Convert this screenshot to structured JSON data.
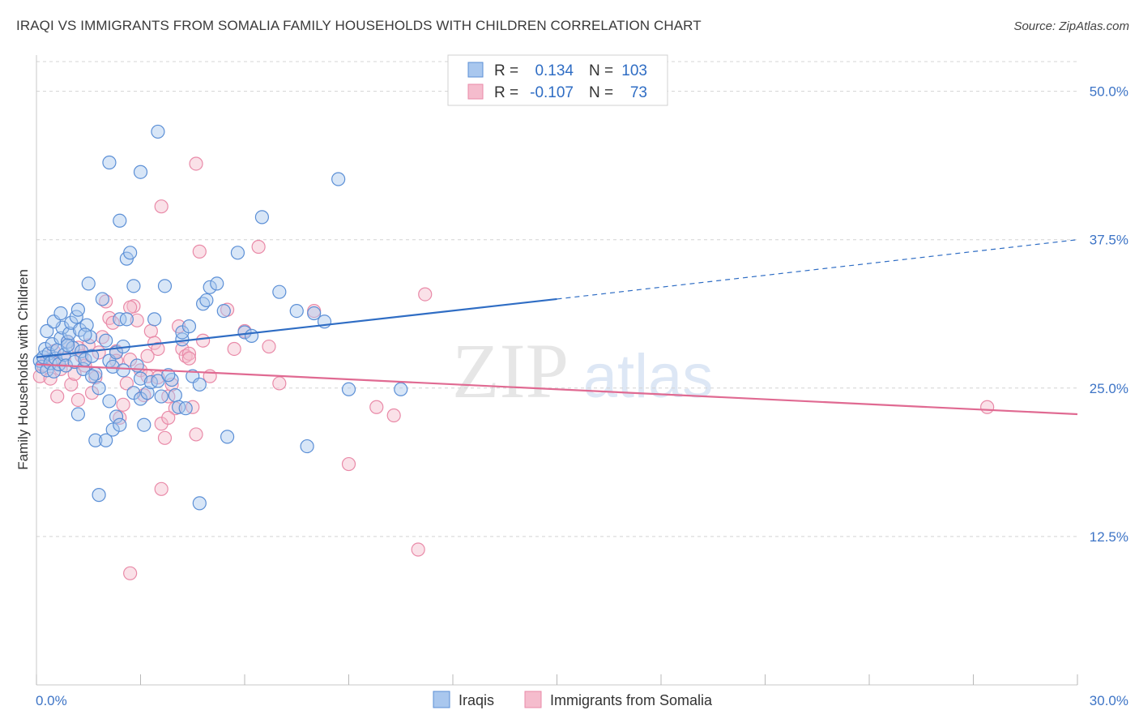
{
  "chart_data": {
    "type": "scatter",
    "title": "IRAQI VS IMMIGRANTS FROM SOMALIA FAMILY HOUSEHOLDS WITH CHILDREN CORRELATION CHART",
    "source": "Source: ZipAtlas.com",
    "watermark": {
      "zip": "ZIP",
      "atlas": "atlas"
    },
    "ylabel": "Family Households with Children",
    "xlabel": "",
    "xlim": [
      0,
      30
    ],
    "ylim": [
      0,
      52.5
    ],
    "x_tick_labels": [
      {
        "value": 0,
        "label": "0.0%"
      },
      {
        "value": 30,
        "label": "30.0%"
      }
    ],
    "x_minor_ticks": [
      0,
      3,
      6,
      9,
      12,
      15,
      18,
      21,
      24,
      27,
      30
    ],
    "y_ticks": [
      {
        "value": 12.5,
        "label": "12.5%"
      },
      {
        "value": 25,
        "label": "25.0%"
      },
      {
        "value": 37.5,
        "label": "37.5%"
      },
      {
        "value": 50,
        "label": "50.0%"
      }
    ],
    "grid": true,
    "legend_position": "top-center",
    "colors": {
      "iraqi_fill": "#a9c7ee",
      "iraqi_stroke": "#5b8fd6",
      "iraqi_line": "#2f6dc4",
      "somalia_fill": "#f5bccd",
      "somalia_stroke": "#e98aa8",
      "somalia_line": "#e06a92",
      "tick_text": "#3d74c6",
      "grid": "#d4d4d4"
    },
    "series": [
      {
        "name": "Iraqis",
        "r_label": "R =",
        "r_value": "0.134",
        "n_label": "N =",
        "n_value": "103",
        "trend": {
          "x0": 0,
          "y0": 27.6,
          "x1": 15,
          "y1": 32.5,
          "dash_to_x": 30,
          "dash_to_y": 37.5
        },
        "points": [
          [
            0.1,
            27.3
          ],
          [
            0.15,
            26.8
          ],
          [
            0.2,
            27.6
          ],
          [
            0.25,
            28.3
          ],
          [
            0.3,
            26.5
          ],
          [
            0.35,
            27.9
          ],
          [
            0.4,
            27.1
          ],
          [
            0.45,
            28.7
          ],
          [
            0.5,
            26.4
          ],
          [
            0.55,
            27.5
          ],
          [
            0.6,
            28.2
          ],
          [
            0.65,
            27.0
          ],
          [
            0.7,
            29.2
          ],
          [
            0.75,
            30.1
          ],
          [
            0.8,
            27.8
          ],
          [
            0.85,
            26.9
          ],
          [
            0.9,
            28.9
          ],
          [
            0.95,
            29.6
          ],
          [
            1.0,
            30.5
          ],
          [
            1.05,
            28.4
          ],
          [
            1.1,
            27.2
          ],
          [
            1.15,
            31.0
          ],
          [
            1.2,
            31.6
          ],
          [
            1.25,
            29.9
          ],
          [
            1.3,
            28.1
          ],
          [
            1.35,
            26.6
          ],
          [
            1.4,
            27.4
          ],
          [
            1.45,
            30.3
          ],
          [
            1.5,
            33.8
          ],
          [
            1.55,
            29.3
          ],
          [
            1.6,
            27.7
          ],
          [
            1.7,
            26.2
          ],
          [
            1.8,
            25.0
          ],
          [
            1.9,
            32.5
          ],
          [
            2.0,
            29.0
          ],
          [
            2.1,
            27.3
          ],
          [
            2.2,
            26.8
          ],
          [
            2.3,
            28.0
          ],
          [
            2.4,
            30.8
          ],
          [
            2.5,
            26.5
          ],
          [
            0.3,
            29.8
          ],
          [
            0.5,
            30.6
          ],
          [
            0.7,
            31.3
          ],
          [
            0.9,
            28.6
          ],
          [
            1.2,
            22.8
          ],
          [
            1.4,
            29.5
          ],
          [
            1.6,
            26.0
          ],
          [
            1.7,
            20.6
          ],
          [
            1.8,
            16.0
          ],
          [
            2.0,
            20.6
          ],
          [
            2.1,
            23.9
          ],
          [
            2.2,
            21.5
          ],
          [
            2.3,
            22.6
          ],
          [
            2.4,
            21.9
          ],
          [
            2.1,
            44.0
          ],
          [
            2.4,
            39.1
          ],
          [
            2.6,
            35.9
          ],
          [
            2.7,
            36.4
          ],
          [
            2.8,
            33.6
          ],
          [
            2.6,
            30.8
          ],
          [
            2.8,
            24.6
          ],
          [
            3.0,
            25.8
          ],
          [
            3.0,
            24.1
          ],
          [
            3.1,
            21.9
          ],
          [
            3.2,
            24.6
          ],
          [
            3.3,
            25.5
          ],
          [
            3.4,
            30.8
          ],
          [
            3.5,
            25.6
          ],
          [
            3.6,
            24.3
          ],
          [
            3.7,
            33.6
          ],
          [
            3.9,
            25.7
          ],
          [
            4.0,
            24.4
          ],
          [
            4.1,
            23.4
          ],
          [
            4.2,
            29.1
          ],
          [
            4.2,
            29.7
          ],
          [
            4.3,
            23.3
          ],
          [
            4.5,
            26.0
          ],
          [
            4.7,
            25.3
          ],
          [
            4.8,
            32.1
          ],
          [
            4.9,
            32.4
          ],
          [
            5.0,
            33.5
          ],
          [
            5.2,
            33.8
          ],
          [
            5.4,
            31.5
          ],
          [
            5.5,
            20.9
          ],
          [
            5.8,
            36.4
          ],
          [
            6.0,
            29.7
          ],
          [
            6.2,
            29.4
          ],
          [
            6.5,
            39.4
          ],
          [
            7.0,
            33.1
          ],
          [
            7.5,
            31.5
          ],
          [
            8.0,
            31.3
          ],
          [
            8.3,
            30.6
          ],
          [
            8.7,
            42.6
          ],
          [
            9.0,
            24.9
          ],
          [
            10.5,
            24.9
          ],
          [
            7.8,
            20.1
          ],
          [
            4.7,
            15.3
          ],
          [
            3.5,
            46.6
          ],
          [
            3.0,
            43.2
          ],
          [
            2.5,
            28.5
          ],
          [
            3.8,
            26.1
          ],
          [
            4.4,
            30.2
          ],
          [
            2.9,
            26.9
          ]
        ]
      },
      {
        "name": "Immigrants from Somalia",
        "r_label": "R =",
        "r_value": "-0.107",
        "n_label": "N =",
        "n_value": "73",
        "trend": {
          "x0": 0,
          "y0": 27.0,
          "x1": 30,
          "y1": 22.8
        },
        "points": [
          [
            0.1,
            26.0
          ],
          [
            0.2,
            26.9
          ],
          [
            0.3,
            27.3
          ],
          [
            0.4,
            25.8
          ],
          [
            0.5,
            28.1
          ],
          [
            0.6,
            24.3
          ],
          [
            0.7,
            26.6
          ],
          [
            0.8,
            27.5
          ],
          [
            0.9,
            28.9
          ],
          [
            1.0,
            25.3
          ],
          [
            1.1,
            26.2
          ],
          [
            1.2,
            24.0
          ],
          [
            1.3,
            27.7
          ],
          [
            1.4,
            26.9
          ],
          [
            1.5,
            28.6
          ],
          [
            1.6,
            24.6
          ],
          [
            1.7,
            25.9
          ],
          [
            1.8,
            28.0
          ],
          [
            1.9,
            29.3
          ],
          [
            2.0,
            32.3
          ],
          [
            2.1,
            30.9
          ],
          [
            2.2,
            30.5
          ],
          [
            2.3,
            28.1
          ],
          [
            2.4,
            22.5
          ],
          [
            2.5,
            23.6
          ],
          [
            2.6,
            25.4
          ],
          [
            2.7,
            27.4
          ],
          [
            2.8,
            31.9
          ],
          [
            2.9,
            30.7
          ],
          [
            3.0,
            26.5
          ],
          [
            3.1,
            24.4
          ],
          [
            3.2,
            26.0
          ],
          [
            3.3,
            29.8
          ],
          [
            3.4,
            28.8
          ],
          [
            3.5,
            25.9
          ],
          [
            3.6,
            22.0
          ],
          [
            3.7,
            20.8
          ],
          [
            3.8,
            24.3
          ],
          [
            3.9,
            25.3
          ],
          [
            4.0,
            23.3
          ],
          [
            4.1,
            30.2
          ],
          [
            4.2,
            28.3
          ],
          [
            4.3,
            27.7
          ],
          [
            4.4,
            27.9
          ],
          [
            4.5,
            23.4
          ],
          [
            4.6,
            21.1
          ],
          [
            4.7,
            36.5
          ],
          [
            4.8,
            29.0
          ],
          [
            5.0,
            26.0
          ],
          [
            5.5,
            31.6
          ],
          [
            5.7,
            28.3
          ],
          [
            6.0,
            29.8
          ],
          [
            6.4,
            36.9
          ],
          [
            6.7,
            28.5
          ],
          [
            7.0,
            25.4
          ],
          [
            8.0,
            31.5
          ],
          [
            9.0,
            18.6
          ],
          [
            9.8,
            23.4
          ],
          [
            10.3,
            22.7
          ],
          [
            11.2,
            32.9
          ],
          [
            2.7,
            31.8
          ],
          [
            3.5,
            28.3
          ],
          [
            3.6,
            16.5
          ],
          [
            3.6,
            40.3
          ],
          [
            4.6,
            43.9
          ],
          [
            11.0,
            11.4
          ],
          [
            2.7,
            9.4
          ],
          [
            3.2,
            27.7
          ],
          [
            27.4,
            23.4
          ],
          [
            1.2,
            28.4
          ],
          [
            2.3,
            27.3
          ],
          [
            4.4,
            27.5
          ],
          [
            3.8,
            22.5
          ]
        ]
      }
    ]
  }
}
